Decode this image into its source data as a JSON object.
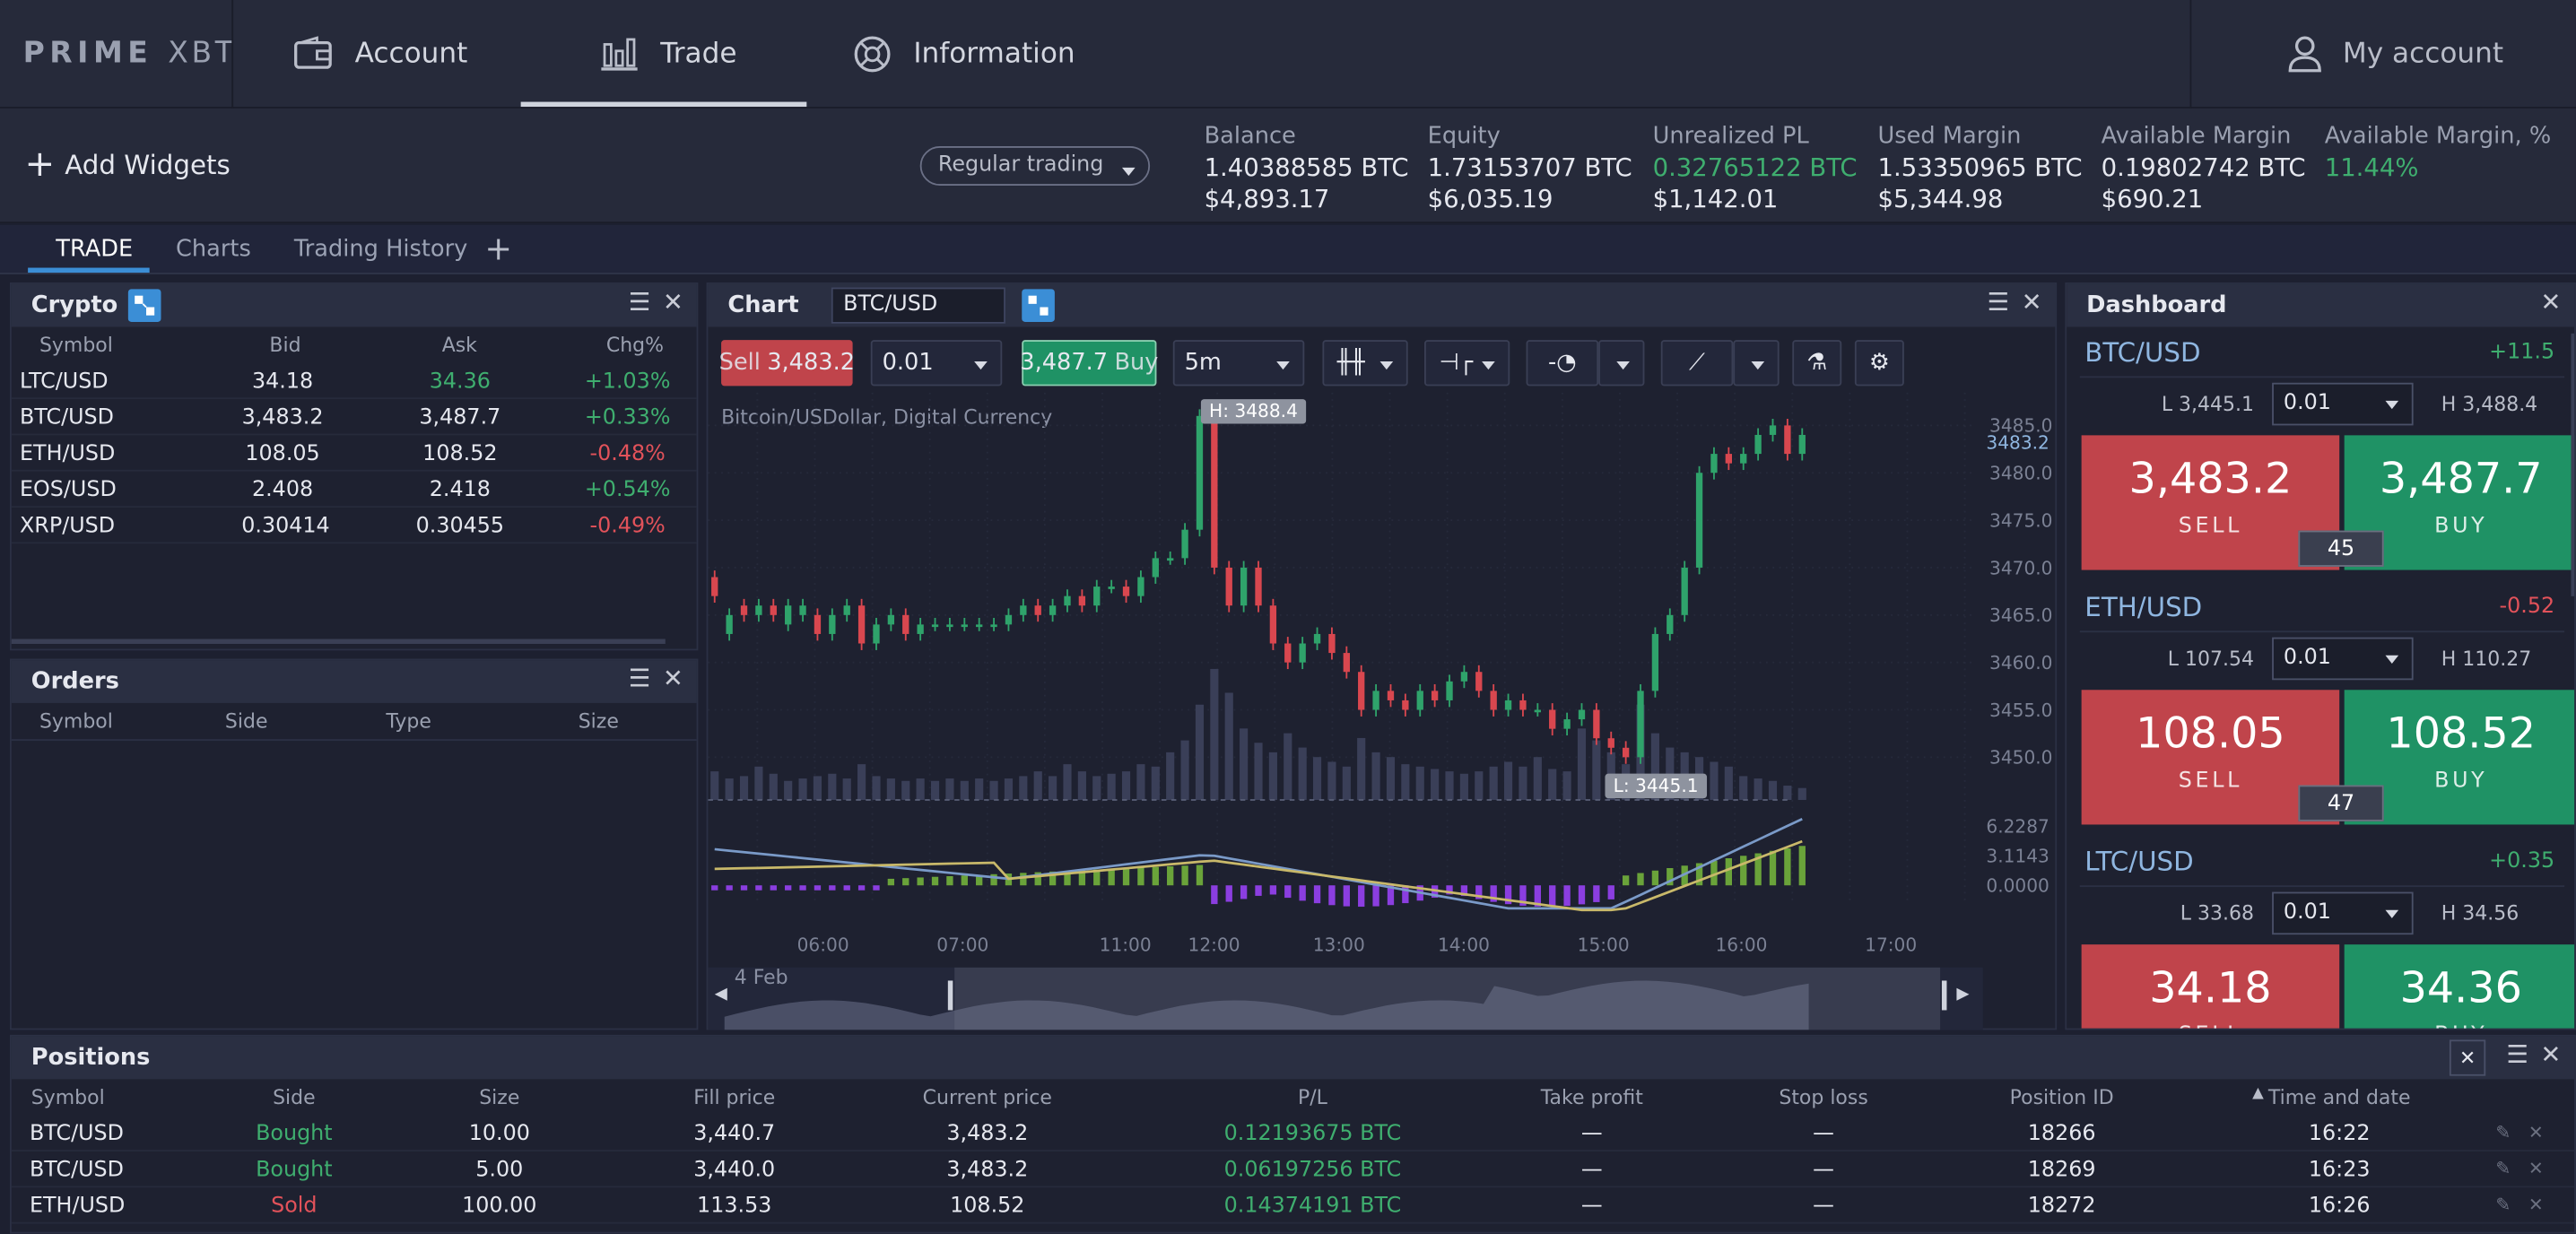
{
  "nav": {
    "logo_bold": "PRIME",
    "logo_light": "XBT",
    "tabs": [
      {
        "label": "Account",
        "icon": "wallet-icon"
      },
      {
        "label": "Trade",
        "icon": "bar-chart-icon"
      },
      {
        "label": "Information",
        "icon": "lifebuoy-icon"
      }
    ],
    "account": "My account"
  },
  "toolbar": {
    "add_widgets": "Add Widgets",
    "trading_mode": "Regular trading"
  },
  "balances": [
    {
      "label": "Balance",
      "btc": "1.40388585 BTC",
      "usd": "$4,893.17",
      "btc_color": "#e6e8ef"
    },
    {
      "label": "Equity",
      "btc": "1.73153707 BTC",
      "usd": "$6,035.19",
      "btc_color": "#e6e8ef"
    },
    {
      "label": "Unrealized PL",
      "btc": "0.32765122 BTC",
      "usd": "$1,142.01",
      "btc_color": "#3fae6f"
    },
    {
      "label": "Used Margin",
      "btc": "1.53350965 BTC",
      "usd": "$5,344.98",
      "btc_color": "#e6e8ef"
    },
    {
      "label": "Available Margin",
      "btc": "0.19802742 BTC",
      "usd": "$690.21",
      "btc_color": "#e6e8ef"
    },
    {
      "label": "Available Margin, %",
      "btc": "11.44%",
      "usd": "",
      "btc_color": "#3fae6f"
    }
  ],
  "tabs": [
    "TRADE",
    "Charts",
    "Trading History"
  ],
  "crypto": {
    "title": "Crypto",
    "cols": [
      "Symbol",
      "Bid",
      "Ask",
      "Chg%"
    ],
    "rows": [
      {
        "symbol": "LTC/USD",
        "bid": "34.18",
        "ask": "34.36",
        "chg": "+1.03%",
        "ask_up": true,
        "up": true
      },
      {
        "symbol": "BTC/USD",
        "bid": "3,483.2",
        "ask": "3,487.7",
        "chg": "+0.33%",
        "ask_up": false,
        "up": true
      },
      {
        "symbol": "ETH/USD",
        "bid": "108.05",
        "ask": "108.52",
        "chg": "-0.48%",
        "ask_up": false,
        "up": false
      },
      {
        "symbol": "EOS/USD",
        "bid": "2.408",
        "ask": "2.418",
        "chg": "+0.54%",
        "ask_up": false,
        "up": true
      },
      {
        "symbol": "XRP/USD",
        "bid": "0.30414",
        "ask": "0.30455",
        "chg": "-0.49%",
        "ask_up": false,
        "up": false
      }
    ]
  },
  "orders": {
    "title": "Orders",
    "cols": [
      "Symbol",
      "Side",
      "Type",
      "Size"
    ]
  },
  "chart": {
    "title": "Chart",
    "symbol": "BTC/USD",
    "sell_label": "Sell",
    "sell_price": "3,483.2",
    "qty": "0.01",
    "buy_price": "3,487.7",
    "buy_label": "Buy",
    "interval": "5m",
    "instrument_desc": "Bitcoin/USDollar, Digital Currency",
    "high_tag": "H: 3488.4",
    "low_tag": "L: 3445.1",
    "last_price": "3483.2",
    "date_label": "4 Feb"
  },
  "chart_data": {
    "type": "candlestick",
    "y_ticks": [
      "3485.0",
      "3480.0",
      "3475.0",
      "3470.0",
      "3465.0",
      "3460.0",
      "3455.0",
      "3450.0"
    ],
    "osc_ticks": [
      "6.2287",
      "3.1143",
      "0.0000"
    ],
    "x_ticks": [
      "06:00",
      "07:00",
      "11:00",
      "12:00",
      "13:00",
      "14:00",
      "15:00",
      "16:00",
      "17:00"
    ],
    "ylim": [
      3445,
      3488
    ],
    "candles": [
      [
        3469,
        3467
      ],
      [
        3463,
        3465
      ],
      [
        3466,
        3465
      ],
      [
        3465,
        3466
      ],
      [
        3466,
        3465
      ],
      [
        3464,
        3466
      ],
      [
        3465,
        3466
      ],
      [
        3465,
        3463
      ],
      [
        3463,
        3465
      ],
      [
        3465,
        3466
      ],
      [
        3466,
        3462
      ],
      [
        3462,
        3464
      ],
      [
        3464,
        3465
      ],
      [
        3465,
        3463
      ],
      [
        3463,
        3464
      ],
      [
        3464,
        3464
      ],
      [
        3464,
        3464
      ],
      [
        3464,
        3464
      ],
      [
        3464,
        3464
      ],
      [
        3464,
        3464
      ],
      [
        3464,
        3465
      ],
      [
        3465,
        3466
      ],
      [
        3466,
        3465
      ],
      [
        3465,
        3466
      ],
      [
        3466,
        3467
      ],
      [
        3467,
        3466
      ],
      [
        3466,
        3468
      ],
      [
        3468,
        3468
      ],
      [
        3468,
        3467
      ],
      [
        3467,
        3469
      ],
      [
        3469,
        3471
      ],
      [
        3471,
        3471
      ],
      [
        3471,
        3474
      ],
      [
        3474,
        3486
      ],
      [
        3486,
        3470
      ],
      [
        3470,
        3466
      ],
      [
        3466,
        3470
      ],
      [
        3470,
        3466
      ],
      [
        3466,
        3462
      ],
      [
        3462,
        3460
      ],
      [
        3460,
        3462
      ],
      [
        3462,
        3463
      ],
      [
        3463,
        3461
      ],
      [
        3461,
        3459
      ],
      [
        3459,
        3455
      ],
      [
        3455,
        3457
      ],
      [
        3457,
        3456
      ],
      [
        3456,
        3455
      ],
      [
        3455,
        3457
      ],
      [
        3457,
        3456
      ],
      [
        3456,
        3458
      ],
      [
        3458,
        3459
      ],
      [
        3459,
        3457
      ],
      [
        3457,
        3455
      ],
      [
        3455,
        3456
      ],
      [
        3456,
        3455
      ],
      [
        3455,
        3455
      ],
      [
        3455,
        3453
      ],
      [
        3453,
        3454
      ],
      [
        3454,
        3455
      ],
      [
        3455,
        3452
      ],
      [
        3452,
        3451
      ],
      [
        3451,
        3450
      ],
      [
        3450,
        3457
      ],
      [
        3457,
        3463
      ],
      [
        3463,
        3465
      ],
      [
        3465,
        3470
      ],
      [
        3470,
        3480
      ],
      [
        3480,
        3482
      ],
      [
        3482,
        3481
      ],
      [
        3481,
        3482
      ],
      [
        3482,
        3484
      ],
      [
        3484,
        3485
      ],
      [
        3485,
        3482
      ],
      [
        3482,
        3484
      ]
    ],
    "volume": [
      12,
      9,
      10,
      14,
      11,
      8,
      9,
      10,
      11,
      9,
      15,
      10,
      9,
      8,
      9,
      8,
      9,
      8,
      9,
      8,
      9,
      10,
      12,
      10,
      15,
      12,
      10,
      11,
      12,
      15,
      14,
      20,
      25,
      40,
      55,
      45,
      30,
      24,
      20,
      28,
      22,
      18,
      16,
      14,
      26,
      20,
      18,
      15,
      14,
      13,
      12,
      11,
      12,
      14,
      16,
      14,
      18,
      13,
      12,
      30,
      25,
      20,
      15,
      40,
      28,
      22,
      20,
      18,
      16,
      14,
      10,
      9,
      8,
      6,
      5
    ]
  },
  "dashboard": {
    "title": "Dashboard",
    "items": [
      {
        "symbol": "BTC/USD",
        "chg": "+11.5",
        "up": true,
        "low": "L 3,445.1",
        "qty": "0.01",
        "high": "H 3,488.4",
        "sell": "3,483.2",
        "buy": "3,487.7",
        "spread": "45",
        "sell_label": "SELL",
        "buy_label": "BUY"
      },
      {
        "symbol": "ETH/USD",
        "chg": "-0.52",
        "up": false,
        "low": "L 107.54",
        "qty": "0.01",
        "high": "H 110.27",
        "sell": "108.05",
        "buy": "108.52",
        "spread": "47",
        "sell_label": "SELL",
        "buy_label": "BUY"
      },
      {
        "symbol": "LTC/USD",
        "chg": "+0.35",
        "up": true,
        "low": "L 33.68",
        "qty": "0.01",
        "high": "H 34.56",
        "sell": "34.18",
        "buy": "34.36",
        "spread": "",
        "sell_label": "SELL",
        "buy_label": "BUY"
      }
    ]
  },
  "positions": {
    "title": "Positions",
    "cols": [
      "Symbol",
      "Side",
      "Size",
      "Fill price",
      "Current price",
      "P/L",
      "Take profit",
      "Stop loss",
      "Position ID",
      "Time and date"
    ],
    "rows": [
      {
        "symbol": "BTC/USD",
        "side": "Bought",
        "size": "10.00",
        "fill": "3,440.7",
        "current": "3,483.2",
        "pl": "0.12193675 BTC",
        "tp": "—",
        "sl": "—",
        "id": "18266",
        "time": "16:22"
      },
      {
        "symbol": "BTC/USD",
        "side": "Bought",
        "size": "5.00",
        "fill": "3,440.0",
        "current": "3,483.2",
        "pl": "0.06197256 BTC",
        "tp": "—",
        "sl": "—",
        "id": "18269",
        "time": "16:23"
      },
      {
        "symbol": "ETH/USD",
        "side": "Sold",
        "size": "100.00",
        "fill": "113.53",
        "current": "108.52",
        "pl": "0.14374191 BTC",
        "tp": "—",
        "sl": "—",
        "id": "18272",
        "time": "16:26"
      }
    ]
  }
}
